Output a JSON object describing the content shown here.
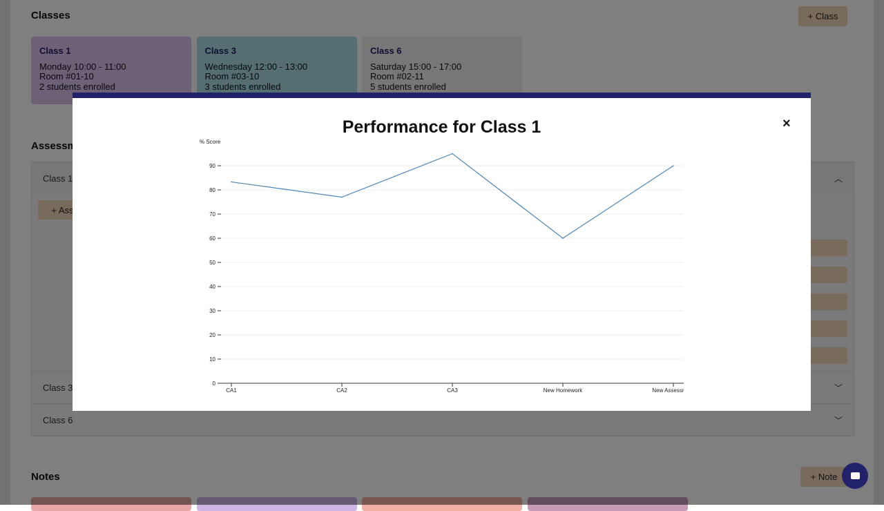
{
  "classes": {
    "title": "Classes",
    "add_label": "+ Class",
    "cards": [
      {
        "name": "Class 1",
        "schedule": "Monday 10:00 - 11:00",
        "room": "Room #01-10",
        "enrolled": "2 students enrolled",
        "color": "#dcc3ef"
      },
      {
        "name": "Class 3",
        "schedule": "Wednesday 12:00 - 13:00",
        "room": "Room #03-10",
        "enrolled": "3 students enrolled",
        "color": "#a8dde3"
      },
      {
        "name": "Class 6",
        "schedule": "Saturday 15:00 - 17:00",
        "room": "Room #02-11",
        "enrolled": "5 students enrolled",
        "color": "#eeeeee"
      }
    ]
  },
  "assessments": {
    "title": "Assessments",
    "add_label": "+ Assessment",
    "panels": [
      "Class 1",
      "Class 3",
      "Class 6"
    ]
  },
  "notes": {
    "title": "Notes",
    "add_label": "+ Note",
    "colors": [
      "#e8a7a7",
      "#cdb3e6",
      "#f0b0a3",
      "#c79ab8"
    ]
  },
  "modal": {
    "title": "Performance for Class 1",
    "close": "×"
  },
  "chart_data": {
    "type": "line",
    "title": "Performance for Class 1",
    "ylabel": "% Score",
    "xlabel": "",
    "categories": [
      "CA1",
      "CA2",
      "CA3",
      "New Homework",
      "New Assessment"
    ],
    "values": [
      83.3,
      77,
      95,
      60,
      90
    ],
    "ylim": [
      0,
      100
    ],
    "yticks": [
      0,
      10,
      20,
      30,
      40,
      50,
      60,
      70,
      80,
      90
    ],
    "grid": true,
    "line_color": "#4a86b8"
  }
}
